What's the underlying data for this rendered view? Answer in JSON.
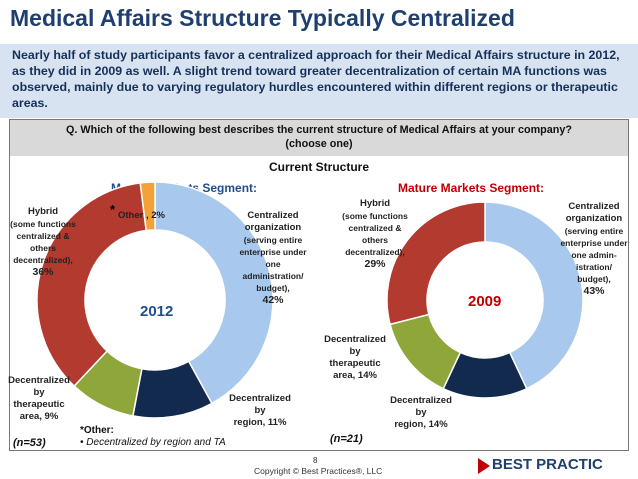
{
  "slide": {
    "title": "Medical Affairs Structure Typically Centralized",
    "summary": "Nearly half of study participants favor a centralized approach for their Medical Affairs structure in 2012, as they did in 2009 as well. A slight trend toward greater decentralization of certain MA functions was observed, mainly due to varying regulatory hurdles encountered within different regions or therapeutic areas.",
    "question_line1": "Q. Which of the following best describes the current structure of Medical Affairs at your company?",
    "question_line2": "(choose one)",
    "footnote_title": "*Other:",
    "footnote_item": "• Decentralized by region and TA",
    "page_number": "8",
    "copyright": "Copyright © Best Practices®, LLC",
    "logo_text": "BEST PRACTIC"
  },
  "colors": {
    "centralized": "#a8c8ee",
    "decentralized_region": "#112a4d",
    "decentralized_ta": "#8fa63a",
    "hybrid": "#b23a2f",
    "other": "#f4a237",
    "segment_left": "#1f4e8c",
    "segment_right": "#c00000"
  },
  "chart_data": {
    "title": "Current Structure",
    "charts": [
      {
        "type": "pie",
        "segment_label": "Mature Markets Segment:",
        "year": "2012",
        "year_color": "#1f4e8c",
        "n_label": "(n=53)",
        "slices": [
          {
            "key": "centralized",
            "value": 42
          },
          {
            "key": "decentralized_region",
            "value": 11
          },
          {
            "key": "decentralized_ta",
            "value": 9
          },
          {
            "key": "hybrid",
            "value": 36
          },
          {
            "key": "other",
            "value": 2
          }
        ],
        "labels": {
          "centralized": {
            "name1": "Centralized",
            "name2": "organization",
            "sub": [
              "(serving entire",
              "enterprise under",
              "one",
              "administration/",
              "budget),"
            ],
            "pct": "42%"
          },
          "decentralized_region": {
            "lines": [
              "Decentralized",
              "by",
              "region, 11%"
            ]
          },
          "decentralized_ta": {
            "lines": [
              "Decentralized",
              "by",
              "therapeutic",
              "area, 9%"
            ]
          },
          "hybrid": {
            "name": "Hybrid",
            "sub": [
              "(some functions",
              "centralized &",
              "others",
              "decentralized)"
            ],
            "sub_suffix": ",",
            "pct": "36%"
          },
          "other": {
            "text": "Other , 2%",
            "star": "*"
          }
        }
      },
      {
        "type": "pie",
        "segment_label": "Mature Markets Segment:",
        "year": "2009",
        "year_color": "#c00000",
        "n_label": "(n=21)",
        "slices": [
          {
            "key": "centralized",
            "value": 43
          },
          {
            "key": "decentralized_region",
            "value": 14
          },
          {
            "key": "decentralized_ta",
            "value": 14
          },
          {
            "key": "hybrid",
            "value": 29
          }
        ],
        "labels": {
          "centralized": {
            "name1": "Centralized",
            "name2": "organization",
            "sub": [
              "(serving entire",
              "enterprise under",
              "one admin-",
              "istration/",
              "budget),"
            ],
            "pct": "43%"
          },
          "decentralized_region": {
            "lines": [
              "Decentralized",
              "by",
              "region, 14%"
            ]
          },
          "decentralized_ta": {
            "lines": [
              "Decentralized",
              "by",
              "therapeutic",
              "area, 14%"
            ]
          },
          "hybrid": {
            "name": "Hybrid",
            "sub": [
              "(some functions",
              "centralized &",
              "others",
              "decentralized),"
            ],
            "pct": "29%"
          }
        }
      }
    ]
  }
}
